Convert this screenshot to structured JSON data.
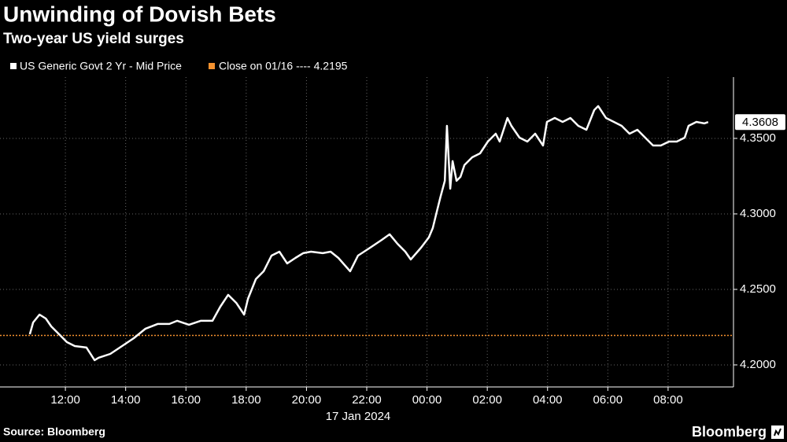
{
  "chart_data": {
    "type": "line",
    "title": "Unwinding of Dovish Bets",
    "subtitle": "Two-year US yield surges",
    "source": "Source: Bloomberg",
    "brand": "Bloomberg",
    "date_label": "17 Jan 2024",
    "reference_line": {
      "label": "Close on 01/16 ---- 4.2195",
      "value": 4.2195,
      "color": "#f5922f"
    },
    "xlim": [
      9.83,
      34.17
    ],
    "xticks": [
      {
        "value": 12,
        "label": "12:00"
      },
      {
        "value": 14,
        "label": "14:00"
      },
      {
        "value": 16,
        "label": "16:00"
      },
      {
        "value": 18,
        "label": "18:00"
      },
      {
        "value": 20,
        "label": "20:00"
      },
      {
        "value": 22,
        "label": "22:00"
      },
      {
        "value": 24,
        "label": "00:00"
      },
      {
        "value": 26,
        "label": "02:00"
      },
      {
        "value": 28,
        "label": "04:00"
      },
      {
        "value": 30,
        "label": "06:00"
      },
      {
        "value": 32,
        "label": "08:00"
      }
    ],
    "ylim": [
      4.1854,
      4.3906
    ],
    "yticks": [
      {
        "value": 4.2,
        "label": "4.2000"
      },
      {
        "value": 4.25,
        "label": "4.2500"
      },
      {
        "value": 4.3,
        "label": "4.3000"
      },
      {
        "value": 4.35,
        "label": "4.3500"
      }
    ],
    "grid": true,
    "x": [
      10.82,
      10.93,
      11.14,
      11.35,
      11.53,
      11.79,
      12.05,
      12.31,
      12.7,
      12.97,
      13.1,
      13.49,
      13.88,
      14.27,
      14.66,
      15.06,
      15.45,
      15.71,
      16.1,
      16.49,
      16.88,
      17.14,
      17.4,
      17.67,
      17.93,
      18.06,
      18.32,
      18.58,
      18.84,
      19.1,
      19.36,
      19.63,
      19.89,
      20.15,
      20.54,
      20.8,
      21.06,
      21.45,
      21.71,
      22.11,
      22.5,
      22.76,
      23.02,
      23.28,
      23.46,
      23.8,
      24.06,
      24.19,
      24.32,
      24.45,
      24.59,
      24.66,
      24.77,
      24.85,
      24.98,
      25.11,
      25.24,
      25.5,
      25.76,
      26.02,
      26.28,
      26.41,
      26.67,
      26.8,
      27.07,
      27.33,
      27.59,
      27.85,
      27.98,
      28.24,
      28.5,
      28.76,
      29.02,
      29.29,
      29.55,
      29.68,
      29.94,
      30.2,
      30.46,
      30.72,
      30.98,
      31.24,
      31.5,
      31.76,
      32.03,
      32.29,
      32.55,
      32.68,
      32.94,
      33.2,
      33.33
    ],
    "series": [
      {
        "name": "US Generic Govt 2 Yr - Mid Price",
        "color": "#ffffff",
        "values": [
          4.2203,
          4.2281,
          4.2333,
          4.2307,
          4.2255,
          4.2203,
          4.2151,
          4.2125,
          4.2115,
          4.2031,
          4.2047,
          4.2073,
          4.2125,
          4.2177,
          4.224,
          4.2271,
          4.2271,
          4.2292,
          4.2266,
          4.2292,
          4.2292,
          4.2385,
          4.2464,
          4.2411,
          4.2333,
          4.2438,
          4.2568,
          4.262,
          4.2724,
          4.275,
          4.2672,
          4.2708,
          4.274,
          4.275,
          4.274,
          4.275,
          4.2708,
          4.262,
          4.2724,
          4.2776,
          4.2828,
          4.2865,
          4.2802,
          4.275,
          4.2698,
          4.2776,
          4.2844,
          4.2906,
          4.301,
          4.3115,
          4.3219,
          4.3583,
          4.3167,
          4.3349,
          4.3219,
          4.3245,
          4.3323,
          4.3375,
          4.3401,
          4.3479,
          4.3531,
          4.3479,
          4.3635,
          4.3583,
          4.3505,
          4.3479,
          4.3531,
          4.3453,
          4.3609,
          4.3635,
          4.3609,
          4.3635,
          4.3583,
          4.3557,
          4.3688,
          4.3714,
          4.3635,
          4.3609,
          4.3583,
          4.3531,
          4.3557,
          4.3505,
          4.3453,
          4.3453,
          4.3479,
          4.3479,
          4.3505,
          4.3583,
          4.3609,
          4.3599,
          4.3608
        ]
      }
    ]
  }
}
